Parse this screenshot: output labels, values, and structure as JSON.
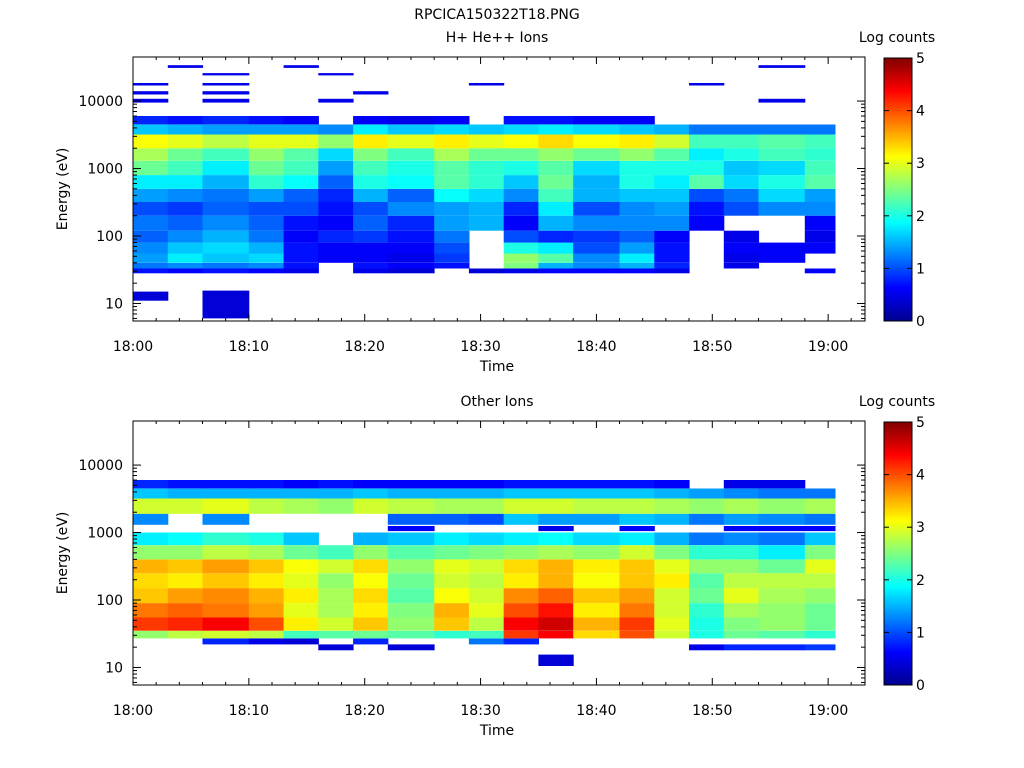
{
  "figure": {
    "title": "RPCICA150322T18.PNG"
  },
  "colormap": [
    "#00008f",
    "#0000ff",
    "#0080ff",
    "#00ffff",
    "#80ff80",
    "#ffff00",
    "#ff8000",
    "#ff0000",
    "#800000"
  ],
  "chart_data": [
    {
      "type": "heatmap",
      "title": "H+ He++ Ions",
      "xlabel": "Time",
      "ylabel": "Energy (eV)",
      "yscale": "log",
      "ylim": [
        5.5,
        45000
      ],
      "x_ticks": [
        "18:00",
        "18:10",
        "18:20",
        "18:30",
        "18:40",
        "18:50",
        "19:00"
      ],
      "y_ticks": [
        "10",
        "100",
        "1000",
        "10000"
      ],
      "colorbar": {
        "label": "Log counts",
        "range": [
          0,
          5
        ],
        "ticks": [
          "0",
          "1",
          "2",
          "3",
          "4",
          "5"
        ]
      },
      "time_bins": [
        "18:00",
        "18:03",
        "18:06",
        "18:10",
        "18:13",
        "18:16",
        "18:19",
        "18:22",
        "18:26",
        "18:29",
        "18:32",
        "18:35",
        "18:38",
        "18:42",
        "18:45",
        "18:48",
        "18:51",
        "18:54",
        "18:58"
      ],
      "energy_bands": [
        {
          "e_min": 11,
          "e_max": 15,
          "counts": [
            0.4,
            null,
            null,
            null,
            null,
            null,
            null,
            null,
            null,
            null,
            null,
            null,
            null,
            null,
            null,
            null,
            null,
            null,
            null
          ]
        },
        {
          "e_min": 6,
          "e_max": 15.5,
          "counts": [
            null,
            null,
            0.4,
            null,
            null,
            null,
            null,
            null,
            null,
            null,
            null,
            null,
            null,
            null,
            null,
            null,
            null,
            null,
            null
          ]
        },
        {
          "e_min": 28,
          "e_max": 33,
          "counts": [
            0.7,
            0.6,
            0.7,
            0.6,
            0.5,
            null,
            0.5,
            0.4,
            null,
            0.4,
            0.5,
            0.6,
            0.6,
            0.6,
            0.5,
            null,
            null,
            null,
            0.6
          ]
        },
        {
          "e_min": 33,
          "e_max": 40,
          "counts": [
            1.2,
            1.3,
            1.2,
            1.3,
            0.7,
            null,
            0.7,
            0.6,
            0.7,
            null,
            2.5,
            1.5,
            1.3,
            1.5,
            0.8,
            null,
            0.5,
            null,
            null
          ]
        },
        {
          "e_min": 40,
          "e_max": 55,
          "counts": [
            1.4,
            1.8,
            1.6,
            1.7,
            0.7,
            0.6,
            0.6,
            0.5,
            0.9,
            null,
            2.6,
            2.3,
            1.3,
            1.8,
            0.7,
            null,
            0.5,
            0.6,
            null
          ]
        },
        {
          "e_min": 55,
          "e_max": 80,
          "counts": [
            1.3,
            1.6,
            1.7,
            1.5,
            0.7,
            0.6,
            0.6,
            0.6,
            1.0,
            null,
            2.0,
            1.8,
            1.0,
            1.4,
            0.7,
            null,
            0.6,
            0.6,
            0.6
          ]
        },
        {
          "e_min": 80,
          "e_max": 120,
          "counts": [
            1.1,
            1.3,
            1.5,
            1.2,
            0.6,
            0.8,
            0.9,
            0.7,
            1.2,
            null,
            1.0,
            0.8,
            0.9,
            1.1,
            0.6,
            null,
            0.5,
            null,
            0.5
          ]
        },
        {
          "e_min": 120,
          "e_max": 200,
          "counts": [
            1.2,
            1.1,
            1.3,
            1.1,
            0.7,
            0.6,
            1.1,
            0.8,
            1.4,
            1.5,
            0.6,
            1.5,
            1.3,
            1.3,
            1.3,
            0.6,
            null,
            null,
            0.6
          ]
        },
        {
          "e_min": 200,
          "e_max": 320,
          "counts": [
            1.0,
            0.9,
            1.1,
            1.0,
            1.0,
            0.7,
            1.0,
            1.3,
            1.4,
            1.5,
            0.8,
            1.8,
            1.0,
            1.3,
            1.4,
            0.7,
            1.0,
            1.3,
            1.3
          ]
        },
        {
          "e_min": 320,
          "e_max": 500,
          "counts": [
            1.4,
            1.3,
            1.2,
            1.4,
            1.1,
            0.8,
            1.5,
            1.1,
            1.9,
            1.7,
            1.3,
            2.2,
            1.5,
            1.6,
            1.6,
            1.0,
            1.2,
            1.7,
            1.4
          ]
        },
        {
          "e_min": 500,
          "e_max": 800,
          "counts": [
            1.8,
            1.8,
            1.5,
            2.1,
            1.9,
            1.1,
            2.0,
            1.9,
            2.3,
            2.1,
            1.6,
            2.4,
            1.5,
            2.0,
            1.8,
            2.3,
            1.7,
            2.0,
            2.3
          ]
        },
        {
          "e_min": 800,
          "e_max": 1300,
          "counts": [
            2.4,
            2.2,
            1.8,
            2.4,
            2.2,
            1.4,
            2.2,
            2.0,
            2.3,
            2.1,
            2.0,
            2.3,
            1.7,
            2.0,
            2.0,
            2.0,
            1.6,
            1.7,
            2.2
          ]
        },
        {
          "e_min": 1300,
          "e_max": 2000,
          "counts": [
            2.7,
            2.4,
            2.2,
            2.6,
            2.3,
            1.7,
            2.5,
            2.2,
            2.7,
            2.4,
            2.4,
            2.6,
            2.4,
            2.6,
            2.3,
            1.8,
            2.0,
            2.2,
            2.1
          ]
        },
        {
          "e_min": 2000,
          "e_max": 3200,
          "counts": [
            3.1,
            3.0,
            2.8,
            3.0,
            3.0,
            2.6,
            3.2,
            3.0,
            3.2,
            3.0,
            3.1,
            3.3,
            3.1,
            3.2,
            2.9,
            2.2,
            2.2,
            2.3,
            2.2
          ]
        },
        {
          "e_min": 3200,
          "e_max": 4500,
          "counts": [
            1.6,
            1.5,
            1.4,
            1.4,
            1.4,
            1.3,
            1.8,
            1.6,
            1.7,
            1.6,
            1.7,
            1.8,
            1.7,
            1.6,
            1.5,
            1.2,
            1.2,
            1.2,
            1.2
          ]
        },
        {
          "e_min": 4500,
          "e_max": 6000,
          "counts": [
            0.8,
            0.7,
            0.8,
            0.7,
            0.6,
            null,
            0.6,
            0.5,
            0.6,
            null,
            0.7,
            0.7,
            0.6,
            0.6,
            null,
            null,
            null,
            null,
            null
          ]
        },
        {
          "e_min": 9500,
          "e_max": 10800,
          "counts": [
            0.5,
            null,
            0.5,
            null,
            null,
            0.5,
            null,
            null,
            null,
            null,
            null,
            null,
            null,
            null,
            null,
            null,
            null,
            0.5,
            null
          ]
        },
        {
          "e_min": 12500,
          "e_max": 14000,
          "counts": [
            0.5,
            null,
            0.5,
            null,
            null,
            null,
            0.5,
            null,
            null,
            null,
            null,
            null,
            null,
            null,
            null,
            null,
            null,
            null,
            null
          ]
        },
        {
          "e_min": 17000,
          "e_max": 18500,
          "counts": [
            0.5,
            null,
            0.5,
            null,
            null,
            null,
            null,
            null,
            null,
            0.5,
            null,
            null,
            null,
            null,
            null,
            0.5,
            null,
            null,
            null
          ]
        },
        {
          "e_min": 24000,
          "e_max": 26000,
          "counts": [
            null,
            null,
            0.5,
            null,
            null,
            0.5,
            null,
            null,
            null,
            null,
            null,
            null,
            null,
            null,
            null,
            null,
            null,
            null,
            null
          ]
        },
        {
          "e_min": 31000,
          "e_max": 34000,
          "counts": [
            null,
            0.5,
            null,
            null,
            0.5,
            null,
            null,
            null,
            null,
            null,
            null,
            null,
            null,
            null,
            null,
            null,
            null,
            0.5,
            null
          ]
        }
      ]
    },
    {
      "type": "heatmap",
      "title": "Other Ions",
      "xlabel": "Time",
      "ylabel": "Energy (eV)",
      "yscale": "log",
      "ylim": [
        5.5,
        45000
      ],
      "x_ticks": [
        "18:00",
        "18:10",
        "18:20",
        "18:30",
        "18:40",
        "18:50",
        "19:00"
      ],
      "y_ticks": [
        "10",
        "100",
        "1000",
        "10000"
      ],
      "colorbar": {
        "label": "Log counts",
        "range": [
          0,
          5
        ],
        "ticks": [
          "0",
          "1",
          "2",
          "3",
          "4",
          "5"
        ]
      },
      "time_bins": [
        "18:00",
        "18:03",
        "18:06",
        "18:10",
        "18:13",
        "18:16",
        "18:19",
        "18:22",
        "18:26",
        "18:29",
        "18:32",
        "18:35",
        "18:38",
        "18:42",
        "18:45",
        "18:48",
        "18:51",
        "18:54",
        "18:58"
      ],
      "energy_bands": [
        {
          "e_min": 6,
          "e_max": 11,
          "counts": [
            null,
            null,
            null,
            null,
            null,
            null,
            null,
            null,
            null,
            null,
            null,
            null,
            null,
            null,
            null,
            null,
            null,
            null,
            null
          ]
        },
        {
          "e_min": 10.5,
          "e_max": 15.5,
          "counts": [
            null,
            null,
            null,
            null,
            null,
            null,
            null,
            null,
            null,
            null,
            null,
            0.4,
            null,
            null,
            null,
            null,
            null,
            null,
            null
          ]
        },
        {
          "e_min": 18,
          "e_max": 22,
          "counts": [
            null,
            null,
            null,
            null,
            null,
            0.4,
            null,
            0.4,
            null,
            null,
            null,
            null,
            null,
            null,
            null,
            0.5,
            0.8,
            0.8,
            0.9
          ]
        },
        {
          "e_min": 22,
          "e_max": 27,
          "counts": [
            null,
            null,
            0.8,
            0.5,
            0.4,
            null,
            0.8,
            null,
            null,
            1.2,
            0.8,
            null,
            null,
            null,
            null,
            null,
            null,
            null,
            null
          ]
        },
        {
          "e_min": 27,
          "e_max": 35,
          "counts": [
            2.6,
            2.8,
            2.9,
            2.8,
            2.2,
            2.3,
            2.4,
            2.3,
            2.1,
            2.2,
            4.1,
            4.4,
            3.3,
            4.0,
            2.9,
            2.0,
            2.4,
            2.3,
            2.1
          ]
        },
        {
          "e_min": 35,
          "e_max": 55,
          "counts": [
            4.1,
            4.2,
            4.4,
            4.0,
            3.2,
            2.9,
            3.4,
            2.6,
            3.4,
            2.8,
            4.4,
            4.6,
            3.5,
            4.1,
            3.0,
            2.0,
            2.5,
            2.6,
            2.4
          ]
        },
        {
          "e_min": 55,
          "e_max": 90,
          "counts": [
            3.8,
            3.9,
            3.8,
            3.6,
            3.0,
            2.7,
            3.2,
            2.5,
            3.5,
            3.0,
            4.0,
            4.3,
            3.2,
            3.8,
            2.9,
            2.1,
            2.7,
            2.6,
            2.4
          ]
        },
        {
          "e_min": 90,
          "e_max": 150,
          "counts": [
            3.4,
            3.6,
            3.7,
            3.5,
            3.2,
            2.7,
            3.3,
            2.3,
            3.1,
            2.9,
            3.7,
            3.9,
            3.4,
            3.6,
            2.9,
            2.4,
            3.0,
            2.7,
            2.6
          ]
        },
        {
          "e_min": 150,
          "e_max": 250,
          "counts": [
            3.3,
            3.2,
            3.4,
            3.2,
            3.0,
            2.6,
            3.1,
            2.4,
            2.9,
            2.8,
            3.2,
            3.5,
            3.1,
            3.4,
            3.2,
            2.3,
            2.8,
            2.8,
            2.8
          ]
        },
        {
          "e_min": 250,
          "e_max": 400,
          "counts": [
            3.5,
            3.4,
            3.6,
            3.4,
            3.1,
            2.9,
            3.3,
            2.6,
            3.0,
            2.9,
            3.3,
            3.5,
            3.2,
            3.4,
            3.0,
            2.6,
            2.6,
            2.4,
            3.0
          ]
        },
        {
          "e_min": 400,
          "e_max": 650,
          "counts": [
            2.6,
            2.6,
            2.8,
            2.7,
            2.4,
            2.2,
            2.6,
            2.3,
            2.4,
            2.5,
            2.6,
            2.7,
            2.6,
            2.9,
            2.5,
            2.1,
            2.1,
            1.8,
            2.5
          ]
        },
        {
          "e_min": 650,
          "e_max": 1000,
          "counts": [
            1.8,
            1.9,
            2.1,
            2.0,
            1.6,
            null,
            1.5,
            1.6,
            1.8,
            1.7,
            1.8,
            1.9,
            1.7,
            1.8,
            1.5,
            1.2,
            1.3,
            1.2,
            1.6
          ]
        },
        {
          "e_min": 1050,
          "e_max": 1250,
          "counts": [
            null,
            null,
            null,
            null,
            null,
            null,
            null,
            0.6,
            null,
            null,
            null,
            0.5,
            null,
            0.6,
            null,
            null,
            0.6,
            0.6,
            0.6
          ]
        },
        {
          "e_min": 1300,
          "e_max": 1900,
          "counts": [
            1.3,
            null,
            1.3,
            null,
            null,
            null,
            null,
            1.1,
            1.1,
            1.0,
            1.6,
            1.4,
            1.4,
            1.6,
            1.5,
            1.2,
            1.4,
            1.3,
            1.2
          ]
        },
        {
          "e_min": 1900,
          "e_max": 3200,
          "counts": [
            2.9,
            2.9,
            3.0,
            2.8,
            2.7,
            2.6,
            2.9,
            2.8,
            2.7,
            2.7,
            2.9,
            2.9,
            2.8,
            2.8,
            2.7,
            2.6,
            2.7,
            2.6,
            2.7
          ]
        },
        {
          "e_min": 3200,
          "e_max": 4500,
          "counts": [
            1.6,
            1.5,
            1.5,
            1.5,
            1.5,
            1.5,
            1.6,
            1.5,
            1.5,
            1.5,
            1.6,
            1.6,
            1.6,
            1.6,
            1.5,
            1.4,
            1.3,
            1.2,
            1.2
          ]
        },
        {
          "e_min": 4500,
          "e_max": 6000,
          "counts": [
            0.8,
            0.7,
            0.7,
            0.7,
            0.6,
            0.7,
            0.6,
            0.6,
            0.6,
            0.6,
            0.7,
            0.7,
            0.7,
            0.7,
            0.6,
            null,
            0.5,
            0.5,
            null
          ]
        }
      ]
    }
  ]
}
